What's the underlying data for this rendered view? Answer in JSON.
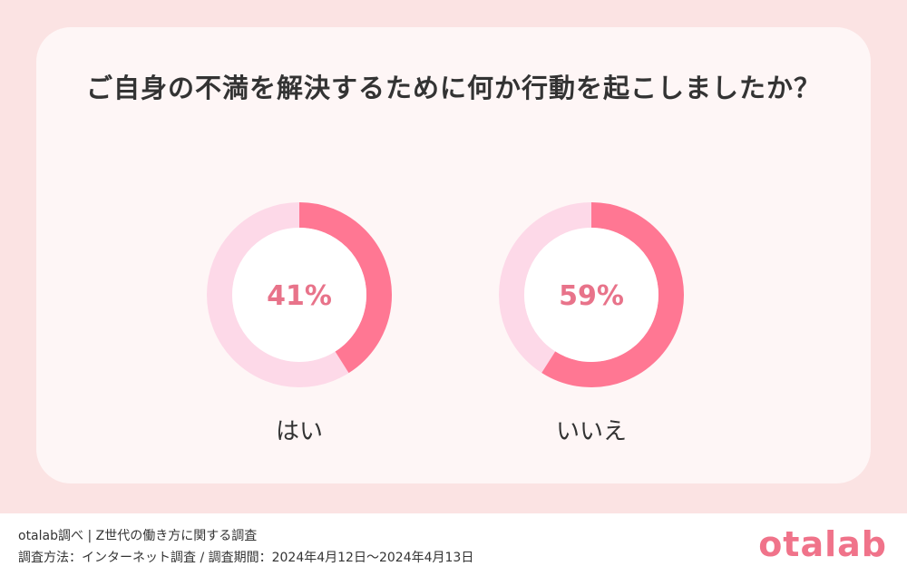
{
  "chart_data": {
    "type": "pie",
    "title": "ご自身の不満を解決するために何か行動を起こしましたか？",
    "series": [
      {
        "label": "はい",
        "value": 41,
        "display": "41%"
      },
      {
        "label": "いいえ",
        "value": 59,
        "display": "59%"
      }
    ],
    "colors": {
      "highlight": "#ff7793",
      "remainder": "#fdd9e8",
      "center_text": "#e8738a"
    }
  },
  "footer": {
    "line1": "otalab調べ | Z世代の働き方に関する調査",
    "line2": "調査方法：インターネット調査 / 調査期間：2024年4月12日〜2024年4月13日",
    "logo": "otalab"
  }
}
